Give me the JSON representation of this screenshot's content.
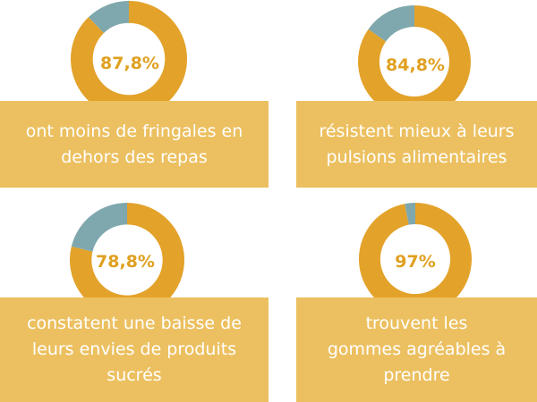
{
  "colors": {
    "ring": "#E3A22A",
    "remainder": "#7FA8AE",
    "box": "#ECC060",
    "label": "#E0A020",
    "text": "#ffffff"
  },
  "chart_data": [
    {
      "type": "pie",
      "values": [
        87.8,
        12.2
      ],
      "label": "87,8%",
      "caption": "ont moins de fringales en\ndehors des repas"
    },
    {
      "type": "pie",
      "values": [
        84.8,
        15.2
      ],
      "label": "84,8%",
      "caption": "résistent mieux à leurs\npulsions alimentaires"
    },
    {
      "type": "pie",
      "values": [
        78.8,
        21.2
      ],
      "label": "78,8%",
      "caption": "constatent une baisse de\nleurs envies de produits\nsucrés"
    },
    {
      "type": "pie",
      "values": [
        97,
        3
      ],
      "label": "97%",
      "caption": "trouvent les\ngommes agréables à\nprendre"
    }
  ]
}
